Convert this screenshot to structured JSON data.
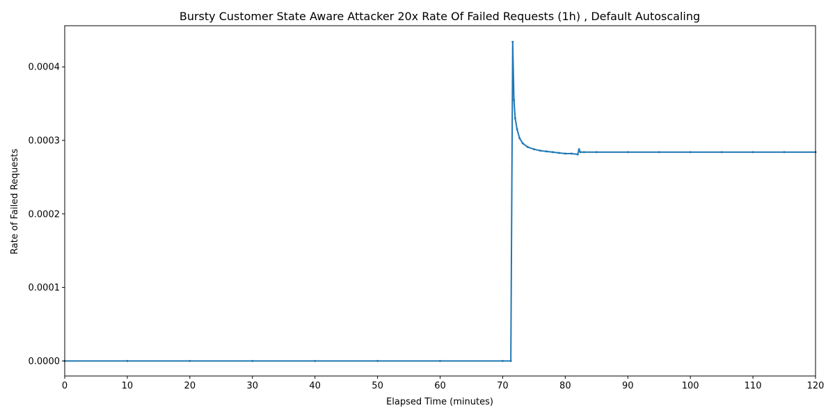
{
  "chart_data": {
    "type": "line",
    "title": "Bursty Customer State Aware Attacker 20x Rate Of Failed Requests (1h) , Default Autoscaling",
    "xlabel": "Elapsed Time (minutes)",
    "ylabel": "Rate of Failed Requests",
    "xlim": [
      0,
      120
    ],
    "ylim": [
      -2.05e-05,
      0.000456
    ],
    "x_ticks": [
      0,
      10,
      20,
      30,
      40,
      50,
      60,
      70,
      80,
      90,
      100,
      110,
      120
    ],
    "y_ticks": [
      0,
      0.0001,
      0.0002,
      0.0003,
      0.0004
    ],
    "y_tick_labels": [
      "0.0000",
      "0.0001",
      "0.0002",
      "0.0003",
      "0.0004"
    ],
    "grid": false,
    "legend": "none",
    "series": [
      {
        "color": "#1f77b4",
        "marker": "dot",
        "x": [
          0,
          10,
          20,
          30,
          40,
          50,
          60,
          70,
          71.3,
          71.6,
          71.8,
          72.0,
          72.3,
          72.7,
          73.2,
          74.0,
          75.0,
          76.0,
          77.0,
          78.0,
          79.0,
          80.0,
          81.0,
          82.0,
          82.2,
          82.4,
          83.0,
          85.0,
          90.0,
          95.0,
          100.0,
          105.0,
          110.0,
          115.0,
          120.0
        ],
        "y": [
          0,
          0,
          0,
          0,
          0,
          0,
          0,
          0,
          0,
          0.000434,
          0.000355,
          0.00033,
          0.000315,
          0.000303,
          0.000296,
          0.000291,
          0.000288,
          0.000286,
          0.000285,
          0.000284,
          0.000283,
          0.000282,
          0.000282,
          0.000281,
          0.000288,
          0.000284,
          0.000284,
          0.000284,
          0.000284,
          0.000284,
          0.000284,
          0.000284,
          0.000284,
          0.000284,
          0.000284
        ]
      }
    ]
  }
}
